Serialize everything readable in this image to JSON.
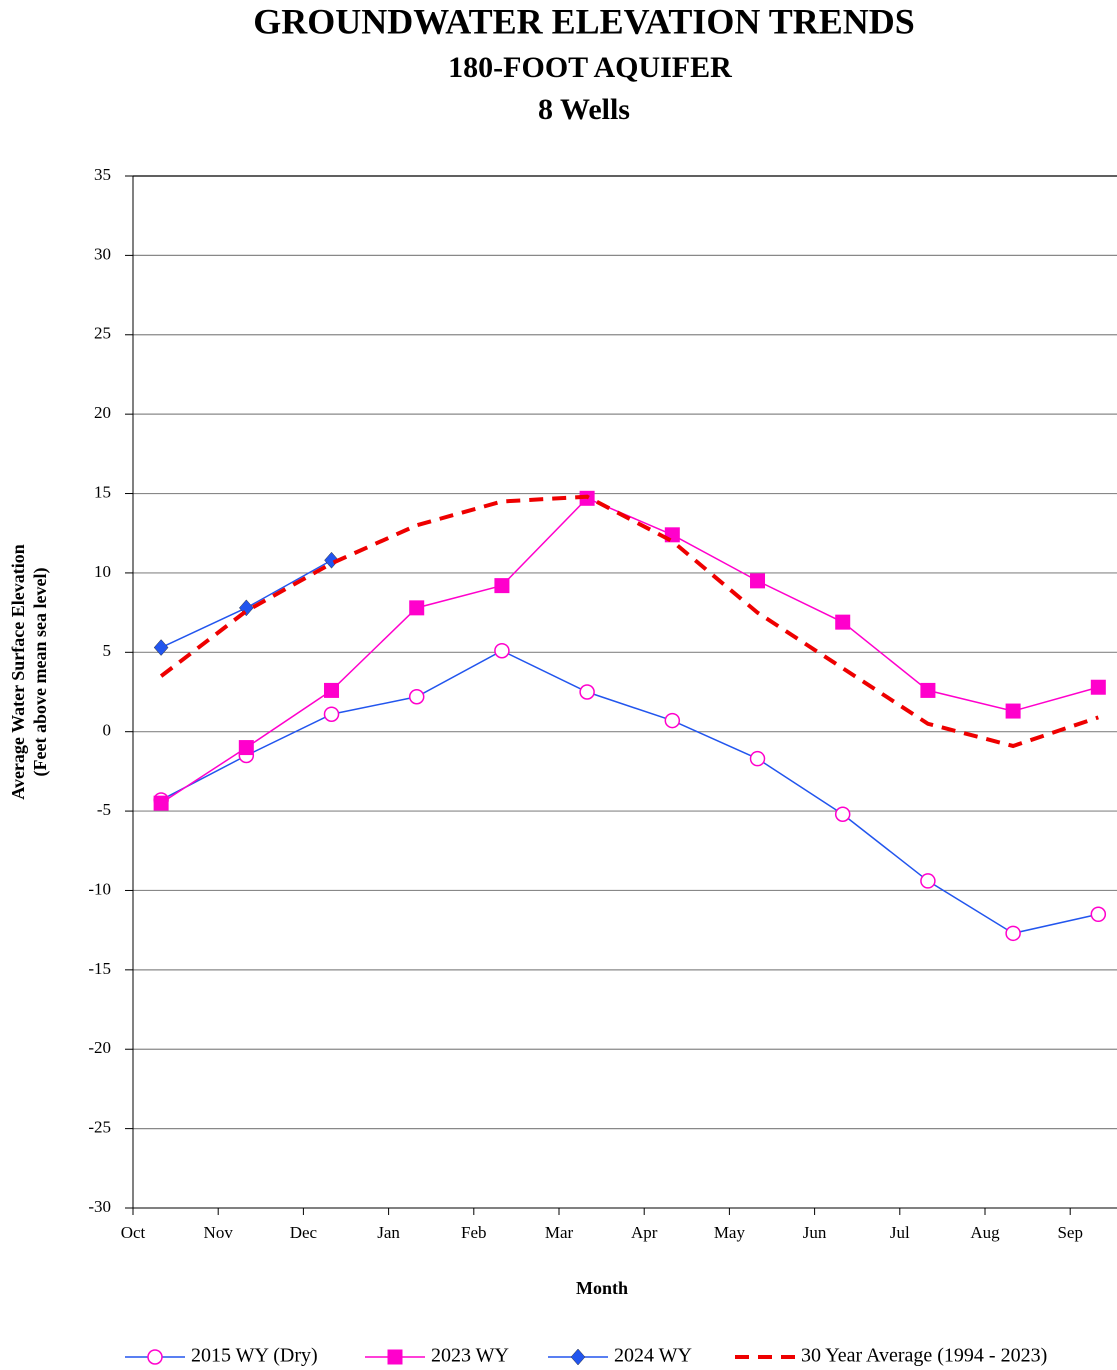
{
  "chart_data": {
    "type": "line",
    "title": "GROUNDWATER ELEVATION TRENDS",
    "subtitle": "180-FOOT AQUIFER",
    "subtitle2": "8 Wells",
    "x_label": "Month",
    "y_label": [
      "Average Water Surface Elevation",
      "(Feet above mean sea level)"
    ],
    "categories": [
      "Oct",
      "Nov",
      "Dec",
      "Jan",
      "Feb",
      "Mar",
      "Apr",
      "May",
      "Jun",
      "Jul",
      "Aug",
      "Sep"
    ],
    "ylim": [
      -30,
      35
    ],
    "yticks": [
      -30,
      -25,
      -20,
      -15,
      -10,
      -5,
      0,
      5,
      10,
      15,
      20,
      25,
      30,
      35
    ],
    "grid": true,
    "legend": "bottom",
    "series": [
      {
        "name": "2015 WY (Dry)",
        "color": "#2255ee",
        "marker": "open-circle",
        "marker_color": "#ff00cc",
        "values": [
          -4.3,
          -1.5,
          1.1,
          2.2,
          5.1,
          2.5,
          0.7,
          -1.7,
          -5.2,
          -9.4,
          -12.7,
          -11.5
        ]
      },
      {
        "name": "2023 WY",
        "color": "#ff00cc",
        "marker": "square",
        "marker_color": "#ff00cc",
        "values": [
          -4.5,
          -1.0,
          2.6,
          7.8,
          9.2,
          14.7,
          12.4,
          9.5,
          6.9,
          2.6,
          1.3,
          2.8
        ]
      },
      {
        "name": "2024 WY",
        "color": "#2255ee",
        "marker": "diamond",
        "marker_color": "#2255ee",
        "values": [
          5.3,
          7.8,
          10.8,
          null,
          null,
          null,
          null,
          null,
          null,
          null,
          null,
          null
        ]
      },
      {
        "name": "30 Year Average (1994 - 2023)",
        "color": "#ee0000",
        "dashed": true,
        "marker": "none",
        "values": [
          3.5,
          7.6,
          10.6,
          13.0,
          14.5,
          14.8,
          12.0,
          7.5,
          4.0,
          0.5,
          -0.9,
          0.9
        ]
      }
    ]
  }
}
